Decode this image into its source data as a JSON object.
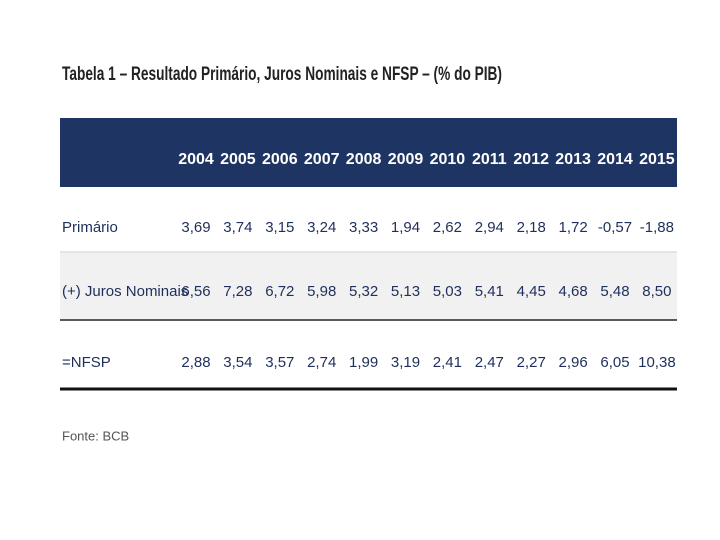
{
  "title": "Tabela 1 – Resultado Primário, Juros Nominais e NFSP – (% do PIB)",
  "table": {
    "header": [
      "2004",
      "2005",
      "2006",
      "2007",
      "2008",
      "2009",
      "2010",
      "2011",
      "2012",
      "2013",
      "2014",
      "2015"
    ],
    "rows": [
      {
        "label": "Primário",
        "cells": [
          "3,69",
          "3,74",
          "3,15",
          "3,24",
          "3,33",
          "1,94",
          "2,62",
          "2,94",
          "2,18",
          "1,72",
          "-0,57",
          "-1,88"
        ]
      },
      {
        "label": "(+) Juros Nominais",
        "cells": [
          "6,56",
          "7,28",
          "6,72",
          "5,98",
          "5,32",
          "5,13",
          "5,03",
          "5,41",
          "4,45",
          "4,68",
          "5,48",
          "8,50"
        ]
      },
      {
        "label": "=NFSP",
        "cells": [
          "2,88",
          "3,54",
          "3,57",
          "2,74",
          "1,99",
          "3,19",
          "2,41",
          "2,47",
          "2,27",
          "2,96",
          "6,05",
          "10,38"
        ]
      }
    ]
  },
  "source": "Fonte: BCB"
}
